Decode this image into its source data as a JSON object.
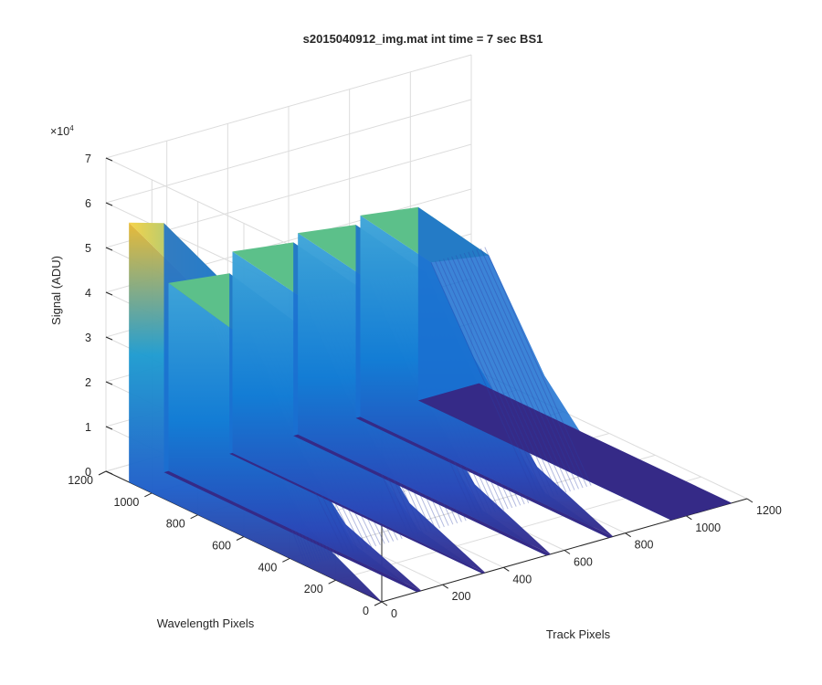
{
  "chart_data": {
    "type": "surface",
    "title": "s2015040912_img.mat int time = 7 sec   BS1",
    "xlabel": "Track Pixels",
    "ylabel": "Wavelength Pixels",
    "zlabel": "Signal (ADU)",
    "z_exponent_label": "×10",
    "z_exponent": "4",
    "xlim": [
      0,
      1200
    ],
    "ylim": [
      0,
      1200
    ],
    "zlim": [
      0,
      70000
    ],
    "xticks": [
      "0",
      "200",
      "400",
      "600",
      "800",
      "1000",
      "1200"
    ],
    "yticks": [
      "0",
      "200",
      "400",
      "600",
      "800",
      "1000",
      "1200"
    ],
    "zticks": [
      "0",
      "1",
      "2",
      "3",
      "4",
      "5",
      "6",
      "7"
    ],
    "grid": true,
    "colormap": "parula",
    "colors": {
      "low": "#352a87",
      "mid": "#0f8bd6",
      "high": "#f9fb0e",
      "plateau": "#5cc08a"
    },
    "wavelength_range": [
      0,
      1100
    ],
    "track_range": [
      0,
      1150
    ],
    "series": [
      {
        "track_start": 0,
        "track_end": 115,
        "peak_signal": 58000,
        "plateau_signal": 50000
      },
      {
        "track_start": 130,
        "track_end": 330,
        "peak_signal": 42000,
        "plateau_signal": 38000
      },
      {
        "track_start": 340,
        "track_end": 540,
        "peak_signal": 45000,
        "plateau_signal": 42000
      },
      {
        "track_start": 555,
        "track_end": 745,
        "peak_signal": 45000,
        "plateau_signal": 42000
      },
      {
        "track_start": 760,
        "track_end": 950,
        "peak_signal": 45000,
        "plateau_signal": 42000
      }
    ]
  }
}
